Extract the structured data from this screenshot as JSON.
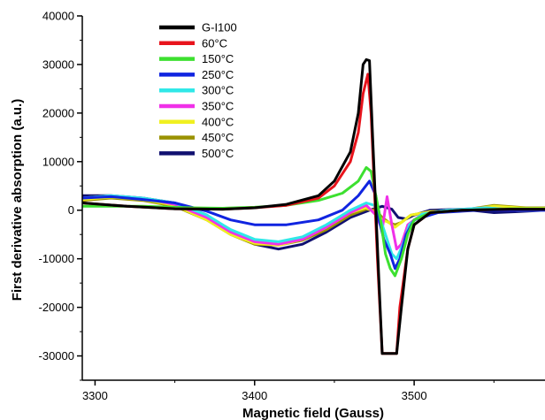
{
  "chart_data": {
    "type": "line",
    "xlabel": "Magnetic field (Gauss)",
    "ylabel": "First derivative absorption (a.u.)",
    "xlim": [
      3292,
      3582
    ],
    "ylim": [
      -35000,
      40000
    ],
    "x_ticks": [
      3300,
      3400,
      3500
    ],
    "y_ticks": [
      40000,
      30000,
      20000,
      10000,
      0,
      -10000,
      -20000,
      -30000
    ],
    "grid": false,
    "legend_position": "top-left",
    "series": [
      {
        "name": "G-I100",
        "color": "#000000",
        "points": [
          [
            3292,
            1500
          ],
          [
            3320,
            800
          ],
          [
            3350,
            300
          ],
          [
            3380,
            200
          ],
          [
            3400,
            500
          ],
          [
            3420,
            1200
          ],
          [
            3440,
            3000
          ],
          [
            3450,
            6000
          ],
          [
            3460,
            12000
          ],
          [
            3465,
            20000
          ],
          [
            3468,
            30000
          ],
          [
            3470,
            31000
          ],
          [
            3472,
            30800
          ],
          [
            3474,
            15000
          ],
          [
            3476,
            0
          ],
          [
            3478,
            -15000
          ],
          [
            3480,
            -29500
          ],
          [
            3489,
            -29500
          ],
          [
            3492,
            -20000
          ],
          [
            3496,
            -8000
          ],
          [
            3500,
            -3000
          ],
          [
            3510,
            -500
          ],
          [
            3530,
            0
          ],
          [
            3560,
            200
          ],
          [
            3582,
            200
          ]
        ]
      },
      {
        "name": "60°C",
        "color": "#e8141c",
        "points": [
          [
            3292,
            1500
          ],
          [
            3320,
            800
          ],
          [
            3350,
            300
          ],
          [
            3380,
            200
          ],
          [
            3400,
            500
          ],
          [
            3420,
            1000
          ],
          [
            3440,
            2500
          ],
          [
            3450,
            5000
          ],
          [
            3460,
            10000
          ],
          [
            3465,
            16000
          ],
          [
            3468,
            24000
          ],
          [
            3471,
            28000
          ],
          [
            3473,
            20000
          ],
          [
            3475,
            5000
          ],
          [
            3477,
            -10000
          ],
          [
            3480,
            -29500
          ],
          [
            3489,
            -29500
          ],
          [
            3491,
            -20000
          ],
          [
            3496,
            -8000
          ],
          [
            3500,
            -3000
          ],
          [
            3510,
            -500
          ],
          [
            3530,
            0
          ],
          [
            3560,
            200
          ],
          [
            3582,
            200
          ]
        ]
      },
      {
        "name": "150°C",
        "color": "#3de030",
        "points": [
          [
            3292,
            800
          ],
          [
            3330,
            800
          ],
          [
            3360,
            500
          ],
          [
            3380,
            400
          ],
          [
            3400,
            600
          ],
          [
            3420,
            1000
          ],
          [
            3440,
            2000
          ],
          [
            3455,
            3500
          ],
          [
            3465,
            6000
          ],
          [
            3470,
            8800
          ],
          [
            3473,
            8000
          ],
          [
            3476,
            3000
          ],
          [
            3479,
            -2000
          ],
          [
            3482,
            -9000
          ],
          [
            3485,
            -12000
          ],
          [
            3488,
            -13500
          ],
          [
            3492,
            -10000
          ],
          [
            3496,
            -5000
          ],
          [
            3500,
            -2000
          ],
          [
            3510,
            -500
          ],
          [
            3530,
            0
          ],
          [
            3560,
            300
          ],
          [
            3582,
            300
          ]
        ]
      },
      {
        "name": "250°C",
        "color": "#1024e0",
        "points": [
          [
            3292,
            2500
          ],
          [
            3310,
            2800
          ],
          [
            3330,
            2200
          ],
          [
            3350,
            1500
          ],
          [
            3370,
            -200
          ],
          [
            3385,
            -2000
          ],
          [
            3400,
            -3000
          ],
          [
            3420,
            -3000
          ],
          [
            3440,
            -2000
          ],
          [
            3455,
            0
          ],
          [
            3465,
            3000
          ],
          [
            3472,
            6000
          ],
          [
            3476,
            3000
          ],
          [
            3478,
            -2000
          ],
          [
            3481,
            -6000
          ],
          [
            3485,
            -9000
          ],
          [
            3488,
            -12000
          ],
          [
            3491,
            -10000
          ],
          [
            3495,
            -5000
          ],
          [
            3500,
            -2000
          ],
          [
            3515,
            -500
          ],
          [
            3540,
            0
          ],
          [
            3560,
            0
          ],
          [
            3582,
            0
          ]
        ]
      },
      {
        "name": "300°C",
        "color": "#30e8e8",
        "points": [
          [
            3292,
            2500
          ],
          [
            3310,
            3000
          ],
          [
            3330,
            2500
          ],
          [
            3350,
            1500
          ],
          [
            3370,
            -1000
          ],
          [
            3385,
            -4000
          ],
          [
            3400,
            -6000
          ],
          [
            3415,
            -6500
          ],
          [
            3430,
            -5500
          ],
          [
            3445,
            -3000
          ],
          [
            3460,
            0
          ],
          [
            3470,
            1500
          ],
          [
            3475,
            1000
          ],
          [
            3478,
            -1000
          ],
          [
            3482,
            -5000
          ],
          [
            3486,
            -9000
          ],
          [
            3489,
            -10000
          ],
          [
            3493,
            -7000
          ],
          [
            3497,
            -3000
          ],
          [
            3505,
            -800
          ],
          [
            3520,
            0
          ],
          [
            3545,
            500
          ],
          [
            3565,
            0
          ],
          [
            3582,
            0
          ]
        ]
      },
      {
        "name": "350°C",
        "color": "#f030e8",
        "points": [
          [
            3292,
            2500
          ],
          [
            3310,
            3000
          ],
          [
            3330,
            2500
          ],
          [
            3350,
            1200
          ],
          [
            3370,
            -1500
          ],
          [
            3385,
            -4500
          ],
          [
            3400,
            -6500
          ],
          [
            3415,
            -7000
          ],
          [
            3430,
            -6000
          ],
          [
            3445,
            -3500
          ],
          [
            3460,
            -500
          ],
          [
            3470,
            1000
          ],
          [
            3476,
            -1000
          ],
          [
            3480,
            -4000
          ],
          [
            3483,
            2800
          ],
          [
            3486,
            -3000
          ],
          [
            3489,
            -8000
          ],
          [
            3492,
            -7000
          ],
          [
            3496,
            -3000
          ],
          [
            3505,
            -800
          ],
          [
            3520,
            0
          ],
          [
            3545,
            500
          ],
          [
            3565,
            0
          ],
          [
            3582,
            0
          ]
        ]
      },
      {
        "name": "400°C",
        "color": "#f0f020",
        "points": [
          [
            3292,
            2200
          ],
          [
            3310,
            2700
          ],
          [
            3330,
            2200
          ],
          [
            3350,
            1000
          ],
          [
            3370,
            -2000
          ],
          [
            3385,
            -5000
          ],
          [
            3400,
            -6800
          ],
          [
            3415,
            -7200
          ],
          [
            3430,
            -6000
          ],
          [
            3445,
            -3500
          ],
          [
            3460,
            -500
          ],
          [
            3470,
            500
          ],
          [
            3476,
            -500
          ],
          [
            3480,
            -2000
          ],
          [
            3484,
            -2500
          ],
          [
            3488,
            -3500
          ],
          [
            3492,
            -2500
          ],
          [
            3498,
            -1000
          ],
          [
            3510,
            -300
          ],
          [
            3530,
            0
          ],
          [
            3550,
            800
          ],
          [
            3570,
            400
          ],
          [
            3582,
            400
          ]
        ]
      },
      {
        "name": "450°C",
        "color": "#9a9200",
        "points": [
          [
            3292,
            2000
          ],
          [
            3310,
            2500
          ],
          [
            3330,
            2000
          ],
          [
            3350,
            800
          ],
          [
            3370,
            -2000
          ],
          [
            3385,
            -5000
          ],
          [
            3400,
            -7000
          ],
          [
            3415,
            -7200
          ],
          [
            3430,
            -6200
          ],
          [
            3445,
            -4000
          ],
          [
            3460,
            -1000
          ],
          [
            3470,
            200
          ],
          [
            3476,
            0
          ],
          [
            3480,
            -1500
          ],
          [
            3484,
            -2500
          ],
          [
            3488,
            -3000
          ],
          [
            3492,
            -2500
          ],
          [
            3498,
            -1000
          ],
          [
            3510,
            -300
          ],
          [
            3530,
            0
          ],
          [
            3550,
            1000
          ],
          [
            3570,
            500
          ],
          [
            3582,
            500
          ]
        ]
      },
      {
        "name": "500°C",
        "color": "#101070",
        "points": [
          [
            3292,
            3000
          ],
          [
            3310,
            3000
          ],
          [
            3330,
            2500
          ],
          [
            3350,
            1500
          ],
          [
            3370,
            -1000
          ],
          [
            3385,
            -4500
          ],
          [
            3400,
            -7000
          ],
          [
            3415,
            -8000
          ],
          [
            3430,
            -7000
          ],
          [
            3445,
            -4500
          ],
          [
            3460,
            -1500
          ],
          [
            3472,
            0
          ],
          [
            3480,
            800
          ],
          [
            3486,
            200
          ],
          [
            3490,
            -1500
          ],
          [
            3495,
            -1800
          ],
          [
            3500,
            -1000
          ],
          [
            3510,
            0
          ],
          [
            3530,
            200
          ],
          [
            3550,
            -500
          ],
          [
            3565,
            -300
          ],
          [
            3582,
            0
          ]
        ]
      }
    ]
  }
}
